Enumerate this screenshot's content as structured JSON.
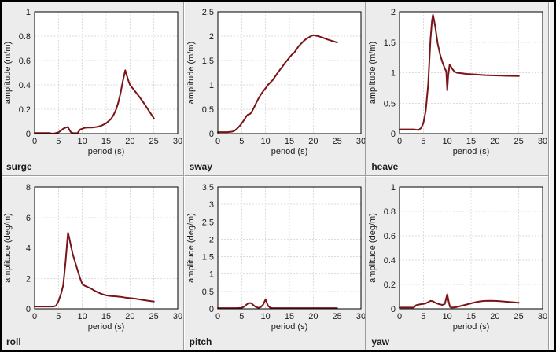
{
  "colors": {
    "line": "#7a1419",
    "grid": "#dcdcdc",
    "frame": "#000000",
    "plot_bg": "#ffffff",
    "panel_bg": "#ececec",
    "text": "#1a1a1a"
  },
  "chart_data": [
    {
      "type": "line",
      "name": "surge",
      "xlabel": "period (s)",
      "ylabel": "amplitude (m/m)",
      "xlim": [
        0,
        30
      ],
      "ylim": [
        0,
        1
      ],
      "xticks": [
        0,
        5,
        10,
        15,
        20,
        25,
        30
      ],
      "xtick_labels": [
        "0",
        "5",
        "10",
        "15",
        "20",
        "25",
        "30"
      ],
      "yticks": [
        0,
        0.2,
        0.4,
        0.6,
        0.8,
        1
      ],
      "ytick_labels": [
        "0",
        "0.2",
        "0.4",
        "0.6",
        "0.8",
        "1"
      ],
      "grid": "dashed",
      "legend": "none",
      "points": [
        [
          0,
          0.005
        ],
        [
          1,
          0.005
        ],
        [
          2,
          0.005
        ],
        [
          3,
          0.005
        ],
        [
          3.5,
          0.002
        ],
        [
          4,
          0.0
        ],
        [
          4.5,
          0.005
        ],
        [
          5,
          0.01
        ],
        [
          5.5,
          0.025
        ],
        [
          6,
          0.04
        ],
        [
          6.5,
          0.05
        ],
        [
          7,
          0.055
        ],
        [
          7.3,
          0.03
        ],
        [
          7.6,
          0.012
        ],
        [
          8,
          0.005
        ],
        [
          8.5,
          0.003
        ],
        [
          9,
          0.005
        ],
        [
          9.3,
          0.02
        ],
        [
          9.6,
          0.035
        ],
        [
          10,
          0.04
        ],
        [
          10.5,
          0.048
        ],
        [
          11,
          0.05
        ],
        [
          12,
          0.05
        ],
        [
          13,
          0.055
        ],
        [
          14,
          0.065
        ],
        [
          15,
          0.085
        ],
        [
          16,
          0.12
        ],
        [
          16.5,
          0.15
        ],
        [
          17,
          0.19
        ],
        [
          17.5,
          0.25
        ],
        [
          18,
          0.33
        ],
        [
          18.5,
          0.43
        ],
        [
          19,
          0.52
        ],
        [
          19.3,
          0.48
        ],
        [
          19.7,
          0.43
        ],
        [
          20,
          0.4
        ],
        [
          21,
          0.35
        ],
        [
          22,
          0.3
        ],
        [
          23,
          0.245
        ],
        [
          24,
          0.185
        ],
        [
          25,
          0.125
        ]
      ]
    },
    {
      "type": "line",
      "name": "sway",
      "xlabel": "period (s)",
      "ylabel": "amplitude (m/m)",
      "xlim": [
        0,
        30
      ],
      "ylim": [
        0,
        2.5
      ],
      "xticks": [
        0,
        5,
        10,
        15,
        20,
        25,
        30
      ],
      "xtick_labels": [
        "0",
        "5",
        "10",
        "15",
        "20",
        "25",
        "30"
      ],
      "yticks": [
        0,
        0.5,
        1,
        1.5,
        2,
        2.5
      ],
      "ytick_labels": [
        "0",
        "0.5",
        "1",
        "1.5",
        "2",
        "2.5"
      ],
      "grid": "dashed",
      "legend": "none",
      "points": [
        [
          0,
          0.03
        ],
        [
          1,
          0.03
        ],
        [
          2,
          0.03
        ],
        [
          3,
          0.04
        ],
        [
          3.5,
          0.06
        ],
        [
          4,
          0.1
        ],
        [
          4.5,
          0.15
        ],
        [
          5,
          0.21
        ],
        [
          5.5,
          0.28
        ],
        [
          6,
          0.36
        ],
        [
          6.3,
          0.39
        ],
        [
          6.7,
          0.4
        ],
        [
          7,
          0.43
        ],
        [
          7.5,
          0.52
        ],
        [
          8,
          0.62
        ],
        [
          8.5,
          0.72
        ],
        [
          9,
          0.8
        ],
        [
          9.5,
          0.87
        ],
        [
          10,
          0.93
        ],
        [
          10.5,
          1.0
        ],
        [
          11,
          1.05
        ],
        [
          11.5,
          1.1
        ],
        [
          12,
          1.17
        ],
        [
          12.5,
          1.24
        ],
        [
          13,
          1.31
        ],
        [
          13.5,
          1.37
        ],
        [
          14,
          1.44
        ],
        [
          14.5,
          1.5
        ],
        [
          15,
          1.56
        ],
        [
          15.5,
          1.62
        ],
        [
          16,
          1.66
        ],
        [
          16.5,
          1.73
        ],
        [
          17,
          1.8
        ],
        [
          17.5,
          1.85
        ],
        [
          18,
          1.9
        ],
        [
          18.5,
          1.94
        ],
        [
          19,
          1.97
        ],
        [
          19.5,
          2.0
        ],
        [
          20,
          2.02
        ],
        [
          20.5,
          2.01
        ],
        [
          21,
          2.0
        ],
        [
          22,
          1.97
        ],
        [
          23,
          1.93
        ],
        [
          24,
          1.9
        ],
        [
          25,
          1.87
        ]
      ]
    },
    {
      "type": "line",
      "name": "heave",
      "xlabel": "period (s)",
      "ylabel": "amplitude (m/m)",
      "xlim": [
        0,
        30
      ],
      "ylim": [
        0,
        2
      ],
      "xticks": [
        0,
        5,
        10,
        15,
        20,
        25,
        30
      ],
      "xtick_labels": [
        "0",
        "5",
        "10",
        "15",
        "20",
        "25",
        "30"
      ],
      "yticks": [
        0,
        0.5,
        1,
        1.5,
        2
      ],
      "ytick_labels": [
        "0",
        "0.5",
        "1",
        "1.5",
        "2"
      ],
      "grid": "dashed",
      "legend": "none",
      "points": [
        [
          0,
          0.07
        ],
        [
          1,
          0.07
        ],
        [
          2,
          0.07
        ],
        [
          3,
          0.07
        ],
        [
          3.5,
          0.065
        ],
        [
          4,
          0.06
        ],
        [
          4.5,
          0.09
        ],
        [
          5,
          0.17
        ],
        [
          5.5,
          0.38
        ],
        [
          6,
          0.8
        ],
        [
          6.5,
          1.55
        ],
        [
          6.8,
          1.85
        ],
        [
          7,
          1.95
        ],
        [
          7.2,
          1.88
        ],
        [
          7.5,
          1.75
        ],
        [
          8,
          1.48
        ],
        [
          8.5,
          1.3
        ],
        [
          9,
          1.17
        ],
        [
          9.5,
          1.07
        ],
        [
          9.8,
          1.02
        ],
        [
          10,
          0.71
        ],
        [
          10.2,
          0.95
        ],
        [
          10.5,
          1.13
        ],
        [
          10.8,
          1.1
        ],
        [
          11,
          1.07
        ],
        [
          11.5,
          1.02
        ],
        [
          12,
          1.0
        ],
        [
          13,
          0.99
        ],
        [
          14,
          0.98
        ],
        [
          15,
          0.975
        ],
        [
          16,
          0.97
        ],
        [
          17,
          0.965
        ],
        [
          18,
          0.96
        ],
        [
          20,
          0.955
        ],
        [
          22,
          0.95
        ],
        [
          25,
          0.945
        ]
      ]
    },
    {
      "type": "line",
      "name": "roll",
      "xlabel": "period (s)",
      "ylabel": "amplitude (deg/m)",
      "xlim": [
        0,
        30
      ],
      "ylim": [
        0,
        8
      ],
      "xticks": [
        0,
        5,
        10,
        15,
        20,
        25,
        30
      ],
      "xtick_labels": [
        "0",
        "5",
        "10",
        "15",
        "20",
        "25",
        "30"
      ],
      "yticks": [
        0,
        2,
        4,
        6,
        8
      ],
      "ytick_labels": [
        "0",
        "2",
        "4",
        "6",
        "8"
      ],
      "grid": "dashed",
      "legend": "none",
      "points": [
        [
          0,
          0.15
        ],
        [
          1,
          0.15
        ],
        [
          2,
          0.15
        ],
        [
          3,
          0.15
        ],
        [
          4,
          0.15
        ],
        [
          4.5,
          0.2
        ],
        [
          5,
          0.5
        ],
        [
          5.5,
          0.95
        ],
        [
          6,
          1.55
        ],
        [
          6.5,
          3.1
        ],
        [
          6.8,
          4.3
        ],
        [
          7,
          5.0
        ],
        [
          7.2,
          4.75
        ],
        [
          7.5,
          4.3
        ],
        [
          8,
          3.6
        ],
        [
          8.5,
          3.05
        ],
        [
          9,
          2.55
        ],
        [
          9.5,
          2.05
        ],
        [
          10,
          1.62
        ],
        [
          10.5,
          1.52
        ],
        [
          11,
          1.45
        ],
        [
          11.5,
          1.38
        ],
        [
          12,
          1.3
        ],
        [
          12.5,
          1.2
        ],
        [
          13,
          1.12
        ],
        [
          13.5,
          1.05
        ],
        [
          14,
          0.98
        ],
        [
          14.5,
          0.93
        ],
        [
          15,
          0.88
        ],
        [
          16,
          0.84
        ],
        [
          17,
          0.82
        ],
        [
          18,
          0.79
        ],
        [
          19,
          0.74
        ],
        [
          20,
          0.7
        ],
        [
          21,
          0.67
        ],
        [
          22,
          0.62
        ],
        [
          23,
          0.57
        ],
        [
          24,
          0.52
        ],
        [
          25,
          0.48
        ]
      ]
    },
    {
      "type": "line",
      "name": "pitch",
      "xlabel": "period (s)",
      "ylabel": "amplitude (deg/m)",
      "xlim": [
        0,
        30
      ],
      "ylim": [
        0,
        3.5
      ],
      "xticks": [
        0,
        5,
        10,
        15,
        20,
        25,
        30
      ],
      "xtick_labels": [
        "0",
        "5",
        "10",
        "15",
        "20",
        "25",
        "30"
      ],
      "yticks": [
        0,
        0.5,
        1,
        1.5,
        2,
        2.5,
        3,
        3.5
      ],
      "ytick_labels": [
        "0",
        "0.5",
        "1",
        "1.5",
        "2",
        "2.5",
        "3",
        "3.5"
      ],
      "grid": "dashed",
      "legend": "none",
      "points": [
        [
          0,
          0.02
        ],
        [
          1,
          0.02
        ],
        [
          2,
          0.02
        ],
        [
          3,
          0.02
        ],
        [
          4,
          0.02
        ],
        [
          5,
          0.03
        ],
        [
          5.5,
          0.06
        ],
        [
          6,
          0.12
        ],
        [
          6.5,
          0.17
        ],
        [
          7,
          0.16
        ],
        [
          7.5,
          0.1
        ],
        [
          8,
          0.05
        ],
        [
          8.5,
          0.03
        ],
        [
          9,
          0.05
        ],
        [
          9.5,
          0.12
        ],
        [
          10,
          0.27
        ],
        [
          10.2,
          0.2
        ],
        [
          10.5,
          0.09
        ],
        [
          11,
          0.03
        ],
        [
          11.5,
          0.02
        ],
        [
          12,
          0.02
        ],
        [
          15,
          0.02
        ],
        [
          20,
          0.02
        ],
        [
          25,
          0.02
        ]
      ]
    },
    {
      "type": "line",
      "name": "yaw",
      "xlabel": "period (s)",
      "ylabel": "amplitude (deg/m)",
      "xlim": [
        0,
        30
      ],
      "ylim": [
        0,
        1
      ],
      "xticks": [
        0,
        5,
        10,
        15,
        20,
        25,
        30
      ],
      "xtick_labels": [
        "0",
        "5",
        "10",
        "15",
        "20",
        "25",
        "30"
      ],
      "yticks": [
        0,
        0.2,
        0.4,
        0.6,
        0.8,
        1
      ],
      "ytick_labels": [
        "0",
        "0.2",
        "0.4",
        "0.6",
        "0.8",
        "1"
      ],
      "grid": "dashed",
      "legend": "none",
      "points": [
        [
          0,
          0.01
        ],
        [
          1,
          0.01
        ],
        [
          2,
          0.01
        ],
        [
          3,
          0.01
        ],
        [
          3.5,
          0.03
        ],
        [
          4,
          0.035
        ],
        [
          4.5,
          0.038
        ],
        [
          5,
          0.04
        ],
        [
          5.5,
          0.045
        ],
        [
          6,
          0.055
        ],
        [
          6.5,
          0.065
        ],
        [
          7,
          0.062
        ],
        [
          7.5,
          0.05
        ],
        [
          8,
          0.042
        ],
        [
          8.5,
          0.036
        ],
        [
          9,
          0.032
        ],
        [
          9.5,
          0.04
        ],
        [
          10,
          0.12
        ],
        [
          10.3,
          0.06
        ],
        [
          10.6,
          0.015
        ],
        [
          11,
          0.01
        ],
        [
          11.5,
          0.012
        ],
        [
          12,
          0.015
        ],
        [
          13,
          0.025
        ],
        [
          14,
          0.035
        ],
        [
          15,
          0.045
        ],
        [
          16,
          0.055
        ],
        [
          17,
          0.062
        ],
        [
          18,
          0.065
        ],
        [
          19,
          0.066
        ],
        [
          20,
          0.065
        ],
        [
          21,
          0.063
        ],
        [
          22,
          0.06
        ],
        [
          23,
          0.056
        ],
        [
          24,
          0.053
        ],
        [
          25,
          0.05
        ]
      ]
    }
  ]
}
